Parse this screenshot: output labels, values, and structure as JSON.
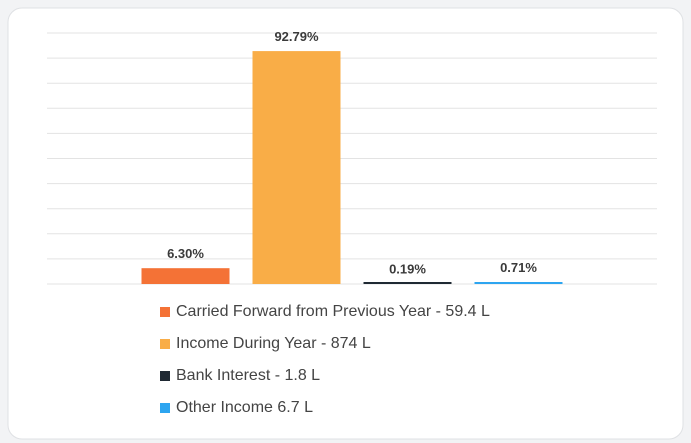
{
  "chart_data": {
    "type": "bar",
    "categories": [
      "Carried Forward from Previous Year - 59.4 L",
      "Income During Year - 874 L",
      "Bank Interest - 1.8 L",
      "Other Income 6.7 L"
    ],
    "values": [
      6.3,
      92.79,
      0.19,
      0.71
    ],
    "value_labels": [
      "6.30%",
      "92.79%",
      "0.19%",
      "0.71%"
    ],
    "colors": [
      "#f47236",
      "#f9ad47",
      "#1f2933",
      "#2da5f0"
    ],
    "ylim": [
      0,
      100
    ],
    "yticks": [
      0,
      10,
      20,
      30,
      40,
      50,
      60,
      70,
      80,
      90,
      100
    ],
    "grid": true
  }
}
